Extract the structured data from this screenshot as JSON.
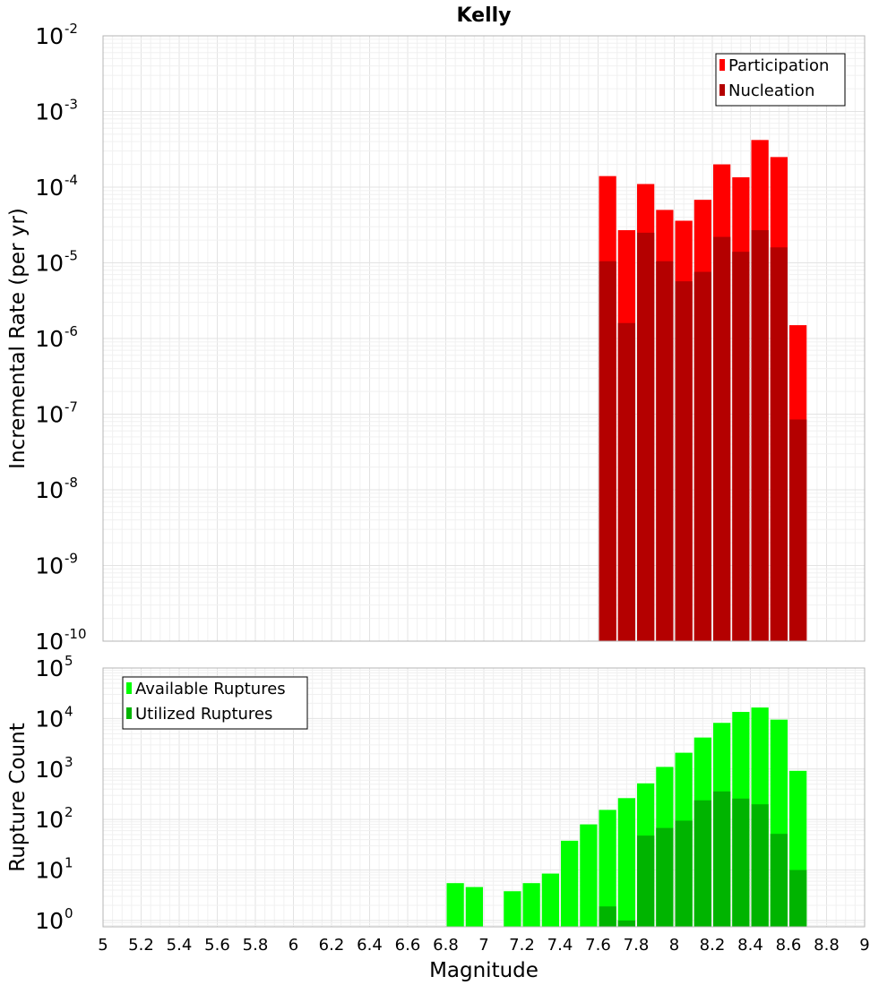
{
  "chart_data": [
    {
      "type": "bar",
      "title": "Kelly",
      "xlabel": "",
      "ylabel": "Incremental Rate (per yr)",
      "yscale": "log",
      "ylim": [
        1e-10,
        0.01
      ],
      "xlim": [
        5,
        9
      ],
      "y_ticks": [
        {
          "base": "10",
          "exp": "-10"
        },
        {
          "base": "10",
          "exp": "-9"
        },
        {
          "base": "10",
          "exp": "-8"
        },
        {
          "base": "10",
          "exp": "-7"
        },
        {
          "base": "10",
          "exp": "-6"
        },
        {
          "base": "10",
          "exp": "-5"
        },
        {
          "base": "10",
          "exp": "-4"
        },
        {
          "base": "10",
          "exp": "-3"
        },
        {
          "base": "10",
          "exp": "-2"
        }
      ],
      "grid": true,
      "legend_position": "top-right",
      "bar_width": 0.1,
      "x": [
        7.65,
        7.75,
        7.85,
        7.95,
        8.05,
        8.15,
        8.25,
        8.35,
        8.45,
        8.55,
        8.65
      ],
      "series": [
        {
          "name": "Participation",
          "color": "#ff0000",
          "values": [
            0.00014,
            2.7e-05,
            0.00011,
            5e-05,
            3.6e-05,
            6.8e-05,
            0.0002,
            0.000135,
            0.00042,
            0.00025,
            1.5e-06
          ]
        },
        {
          "name": "Nucleation",
          "color": "#b40000",
          "values": [
            1.05e-05,
            1.6e-06,
            2.5e-05,
            1.05e-05,
            5.7e-06,
            7.6e-06,
            2.2e-05,
            1.4e-05,
            2.7e-05,
            1.6e-05,
            8.5e-08
          ]
        }
      ]
    },
    {
      "type": "bar",
      "title": "",
      "xlabel": "Magnitude",
      "ylabel": "Rupture Count",
      "yscale": "log",
      "ylim": [
        0.75,
        100000.0
      ],
      "xlim": [
        5,
        9
      ],
      "y_ticks": [
        {
          "base": "10",
          "exp": "0"
        },
        {
          "base": "10",
          "exp": "1"
        },
        {
          "base": "10",
          "exp": "2"
        },
        {
          "base": "10",
          "exp": "3"
        },
        {
          "base": "10",
          "exp": "4"
        },
        {
          "base": "10",
          "exp": "5"
        }
      ],
      "x_ticks": [
        "5",
        "5.2",
        "5.4",
        "5.6",
        "5.8",
        "6",
        "6.2",
        "6.4",
        "6.6",
        "6.8",
        "7",
        "7.2",
        "7.4",
        "7.6",
        "7.8",
        "8",
        "8.2",
        "8.4",
        "8.6",
        "8.8",
        "9"
      ],
      "grid": true,
      "legend_position": "top-left",
      "bar_width": 0.1,
      "x": [
        6.85,
        6.95,
        7.15,
        7.25,
        7.35,
        7.45,
        7.55,
        7.65,
        7.75,
        7.85,
        7.95,
        8.05,
        8.15,
        8.25,
        8.35,
        8.45,
        8.55,
        8.65
      ],
      "series": [
        {
          "name": "Available Ruptures",
          "color": "#00ff00",
          "values": [
            5.5,
            4.6,
            3.8,
            5.5,
            8.5,
            38,
            80,
            155,
            265,
            520,
            1100,
            2100,
            4200,
            8200,
            13500,
            16500,
            9500,
            920
          ]
        },
        {
          "name": "Utilized Ruptures",
          "color": "#00b400",
          "values": [
            null,
            null,
            null,
            null,
            null,
            null,
            null,
            1.9,
            1.0,
            48,
            68,
            95,
            240,
            360,
            260,
            200,
            52,
            10
          ]
        }
      ]
    }
  ]
}
